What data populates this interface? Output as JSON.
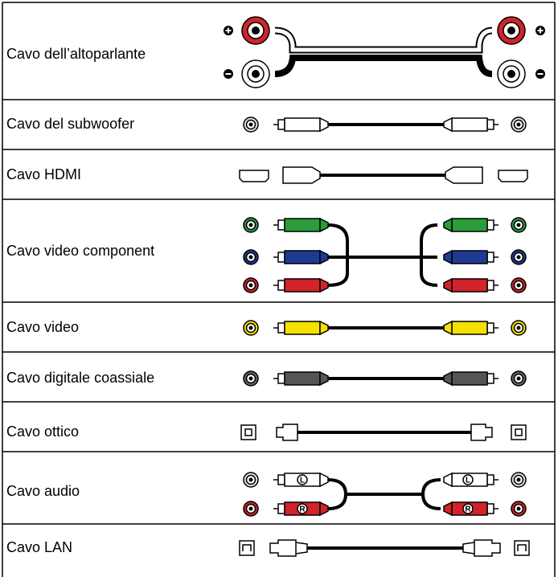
{
  "rows": [
    {
      "label": "Cavo dell’altoparlante"
    },
    {
      "label": "Cavo del subwoofer"
    },
    {
      "label": "Cavo HDMI"
    },
    {
      "label": "Cavo video component"
    },
    {
      "label": "Cavo video"
    },
    {
      "label": "Cavo digitale coassiale"
    },
    {
      "label": "Cavo ottico"
    },
    {
      "label": "Cavo audio",
      "markers": [
        "L",
        "R"
      ]
    },
    {
      "label": "Cavo LAN"
    }
  ]
}
